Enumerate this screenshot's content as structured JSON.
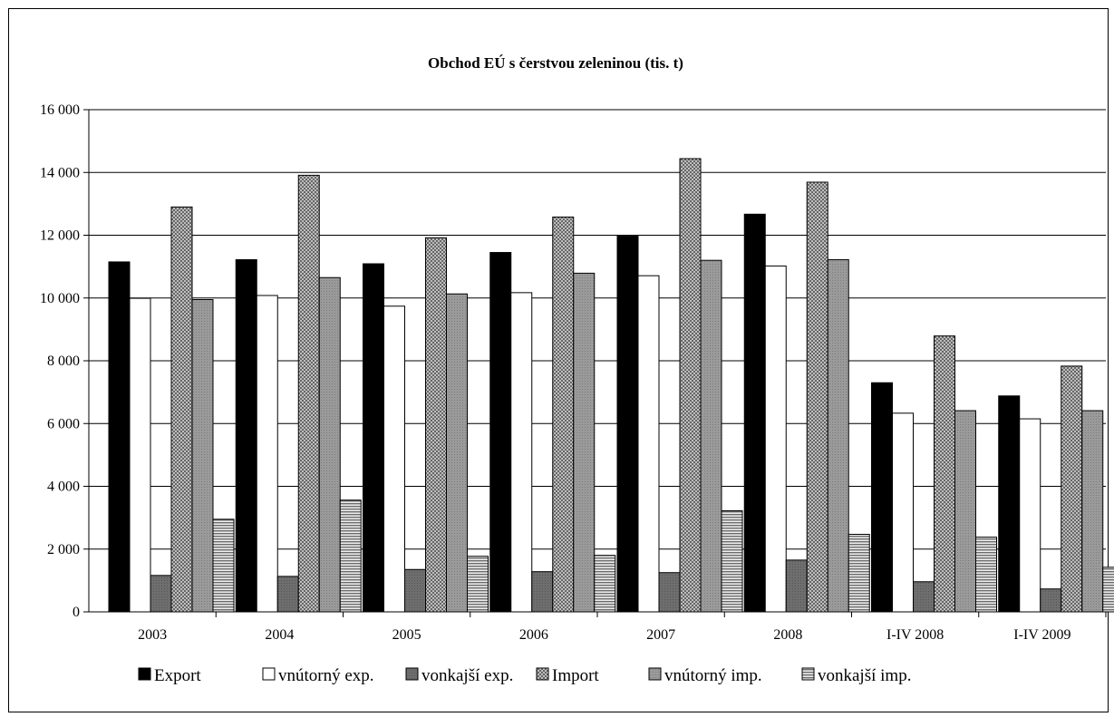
{
  "chart_data": {
    "type": "bar",
    "title": "Obchod  EÚ s čerstvou  zeleninou (tis. t)",
    "categories": [
      "2003",
      "2004",
      "2005",
      "2006",
      "2007",
      "2008",
      "I-IV  2008",
      "I-IV  2009"
    ],
    "ylim": [
      0,
      16000
    ],
    "yticks": [
      "0",
      "2 000",
      "4 000",
      "6 000",
      "8 000",
      "10 000",
      "12 000",
      "14 000",
      "16 000"
    ],
    "grid": true,
    "legend_position": "bottom",
    "series": [
      {
        "name": "Export",
        "pattern": "black",
        "values": [
          11150,
          11220,
          11090,
          11450,
          11970,
          12670,
          7300,
          6880
        ]
      },
      {
        "name": "vnútorný exp.",
        "pattern": "white",
        "values": [
          9990,
          10080,
          9740,
          10170,
          10710,
          11020,
          6330,
          6150
        ]
      },
      {
        "name": "vonkajší exp.",
        "pattern": "darkgray",
        "values": [
          1160,
          1130,
          1350,
          1280,
          1250,
          1650,
          960,
          730
        ]
      },
      {
        "name": "Import",
        "pattern": "crosshatch",
        "values": [
          12900,
          13910,
          11920,
          12580,
          14440,
          13690,
          8790,
          7830
        ]
      },
      {
        "name": "vnútorný imp.",
        "pattern": "gray",
        "values": [
          9950,
          10650,
          10130,
          10790,
          11200,
          11220,
          6410,
          6410
        ]
      },
      {
        "name": "vonkajší imp.",
        "pattern": "hlines",
        "values": [
          2950,
          3560,
          1770,
          1800,
          3220,
          2470,
          2380,
          1420
        ]
      }
    ]
  }
}
